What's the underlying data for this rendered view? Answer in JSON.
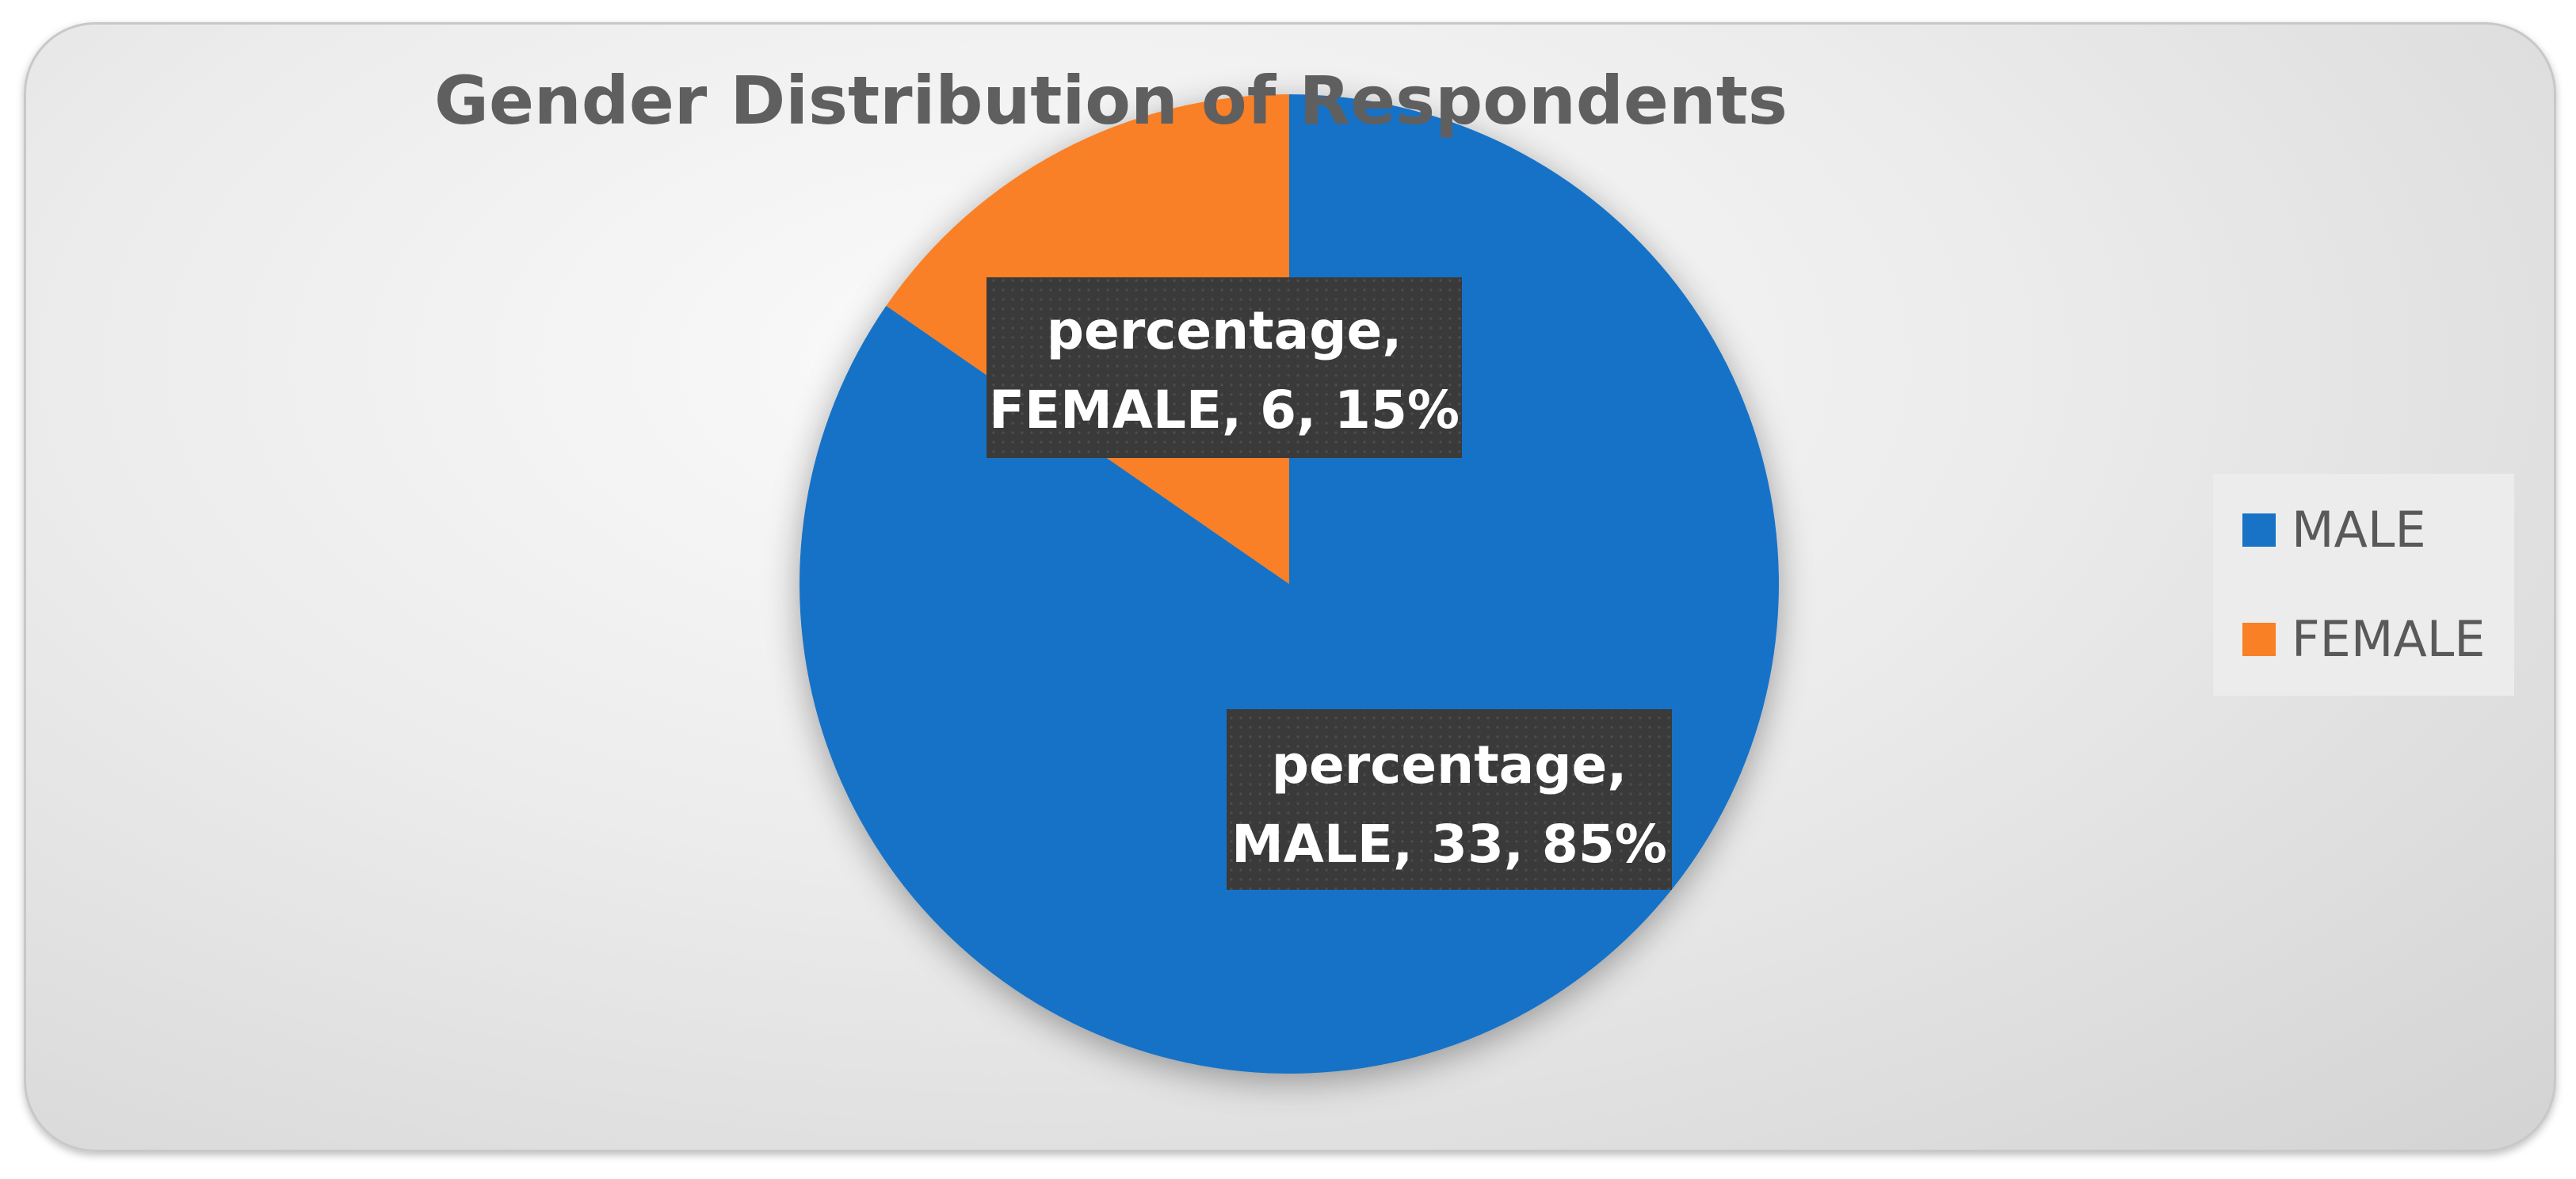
{
  "chart_data": {
    "type": "pie",
    "title": "Gender Distribution of Respondents",
    "series_name": "percentage",
    "categories": [
      "MALE",
      "FEMALE"
    ],
    "values": [
      33,
      6
    ],
    "percentages": [
      "85%",
      "15%"
    ],
    "colors": [
      "#1872C6",
      "#F98025"
    ],
    "data_labels": [
      {
        "line1": "percentage,",
        "line2": "MALE, 33, 85%"
      },
      {
        "line1": "percentage,",
        "line2": "FEMALE, 6, 15%"
      }
    ],
    "legend": {
      "position": "right",
      "entries": [
        "MALE",
        "FEMALE"
      ]
    }
  }
}
